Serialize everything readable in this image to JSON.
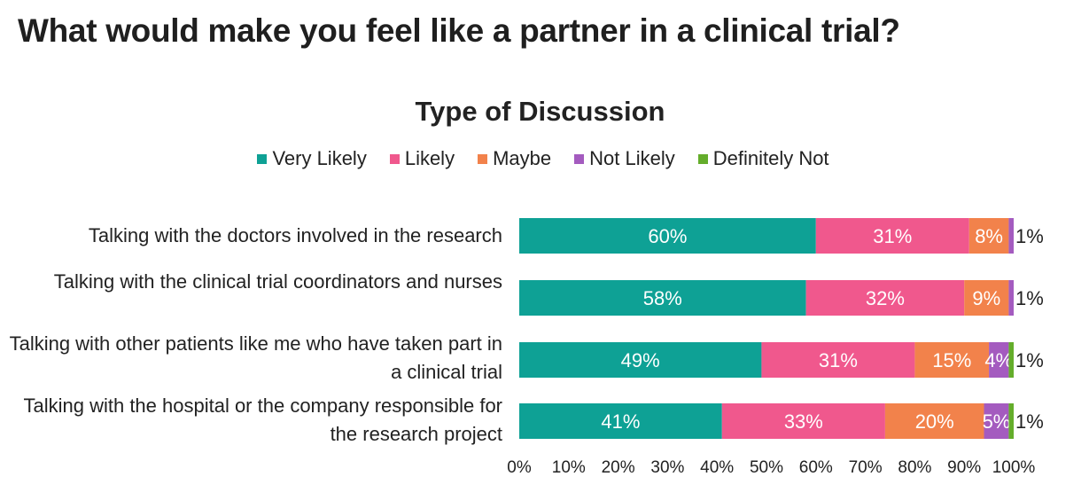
{
  "page": {
    "title": "What would make you feel like a partner in a clinical trial?"
  },
  "chart_data": {
    "type": "bar",
    "orientation": "horizontal",
    "stacked": true,
    "title": "Type of Discussion",
    "categories": [
      "Talking with the doctors involved in the research",
      "Talking with the clinical trial coordinators and nurses",
      "Talking with other patients like me who have taken part in a clinical trial",
      "Talking with the hospital or the company responsible for the research project"
    ],
    "series": [
      {
        "name": "Very Likely",
        "color": "#0ea195",
        "values": [
          60,
          58,
          49,
          41
        ],
        "labels": [
          "60%",
          "58%",
          "49%",
          "41%"
        ]
      },
      {
        "name": "Likely",
        "color": "#f0588d",
        "values": [
          31,
          32,
          31,
          33
        ],
        "labels": [
          "31%",
          "32%",
          "31%",
          "33%"
        ]
      },
      {
        "name": "Maybe",
        "color": "#f2824b",
        "values": [
          8,
          9,
          15,
          20
        ],
        "labels": [
          "8%",
          "9%",
          "15%",
          "20%"
        ]
      },
      {
        "name": "Not Likely",
        "color": "#a45bbf",
        "values": [
          1,
          1,
          4,
          5
        ],
        "labels": [
          "",
          "",
          "4%",
          "5%"
        ]
      },
      {
        "name": "Definitely Not",
        "color": "#64ad2b",
        "values": [
          0,
          0,
          1,
          1
        ],
        "labels": [
          "",
          "",
          "",
          ""
        ]
      }
    ],
    "end_labels": [
      "1%",
      "1%",
      "1%",
      "1%"
    ],
    "x_ticks": [
      "0%",
      "10%",
      "20%",
      "30%",
      "40%",
      "50%",
      "60%",
      "70%",
      "80%",
      "90%",
      "100%"
    ],
    "xlim": [
      0,
      100
    ],
    "legend_position": "top-center",
    "grid": false
  }
}
